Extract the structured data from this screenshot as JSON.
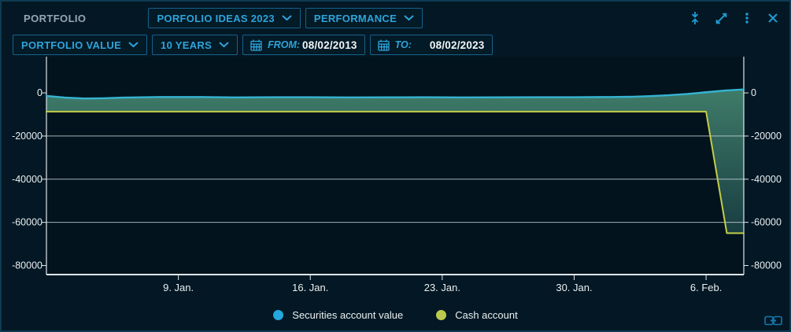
{
  "panel": {
    "title": "PORTFOLIO"
  },
  "topbar": {
    "portfolio_dropdown": "PORFOLIO IDEAS 2023",
    "view_dropdown": "PERFORMANCE",
    "icons": [
      "collapse-vertical-icon",
      "expand-icon",
      "kebab-menu-icon",
      "close-icon"
    ]
  },
  "toolbar": {
    "metric_dropdown": "PORTFOLIO VALUE",
    "range_dropdown": "10 YEARS",
    "from_label": "FROM:",
    "from_value": "08/02/2013",
    "to_label": "TO:",
    "to_value": "08/02/2023"
  },
  "colors": {
    "panel_bg": "#031824",
    "plot_bg": "#02131d",
    "accent_cyan": "#2ea4da",
    "border_blue": "#17618a",
    "axis_line": "#dfe7ea",
    "grid_line": "#cdd8dd",
    "tick_text": "#e9eff2",
    "securities_line": "#35b4d2",
    "cash_line": "#c2cd4a",
    "fill_top": "#3e7a68",
    "fill_bottom": "#0d2b37",
    "legend_securities_dot": "#24a8e0",
    "legend_cash_dot": "#bcc94f",
    "link_icon": "#1478ad"
  },
  "chart_data": {
    "type": "area",
    "title": "",
    "xlabel": "",
    "ylabel": "",
    "x_unit": "days from 2. Jan",
    "xlim": [
      0,
      37
    ],
    "ylim": [
      -84200,
      16800
    ],
    "grid": "horizontal",
    "legend_position": "bottom-center",
    "x_ticks": [
      {
        "day": 7,
        "label": "9. Jan."
      },
      {
        "day": 14,
        "label": "16. Jan."
      },
      {
        "day": 21,
        "label": "23. Jan."
      },
      {
        "day": 28,
        "label": "30. Jan."
      },
      {
        "day": 35,
        "label": "6. Feb."
      }
    ],
    "y_ticks": [
      {
        "value": 0,
        "label": "0"
      },
      {
        "value": -20000,
        "label": "-20000"
      },
      {
        "value": -40000,
        "label": "-40000"
      },
      {
        "value": -60000,
        "label": "-60000"
      },
      {
        "value": -80000,
        "label": "-80000"
      }
    ],
    "gridline_values": [
      -20000,
      -40000,
      -60000
    ],
    "series": [
      {
        "name": "Securities account value",
        "color": "#35b4d2",
        "points": [
          [
            0,
            -1400
          ],
          [
            1,
            -2200
          ],
          [
            2,
            -2600
          ],
          [
            3,
            -2500
          ],
          [
            4,
            -2200
          ],
          [
            6,
            -1900
          ],
          [
            8,
            -1900
          ],
          [
            10,
            -2100
          ],
          [
            12,
            -2000
          ],
          [
            14,
            -2000
          ],
          [
            16,
            -2100
          ],
          [
            18,
            -2050
          ],
          [
            20,
            -2000
          ],
          [
            22,
            -2100
          ],
          [
            24,
            -2050
          ],
          [
            26,
            -2000
          ],
          [
            28,
            -2000
          ],
          [
            30,
            -1900
          ],
          [
            31,
            -1800
          ],
          [
            32,
            -1500
          ],
          [
            33,
            -1100
          ],
          [
            34,
            -500
          ],
          [
            35,
            300
          ],
          [
            36,
            1100
          ],
          [
            37,
            1600
          ]
        ]
      },
      {
        "name": "Cash account",
        "color": "#c2cd4a",
        "points": [
          [
            0,
            -8700
          ],
          [
            35,
            -8700
          ],
          [
            36.1,
            -65000
          ],
          [
            37,
            -65000
          ]
        ]
      }
    ],
    "legend": [
      {
        "label": "Securities account value",
        "color": "#24a8e0"
      },
      {
        "label": "Cash account",
        "color": "#bcc94f"
      }
    ]
  }
}
